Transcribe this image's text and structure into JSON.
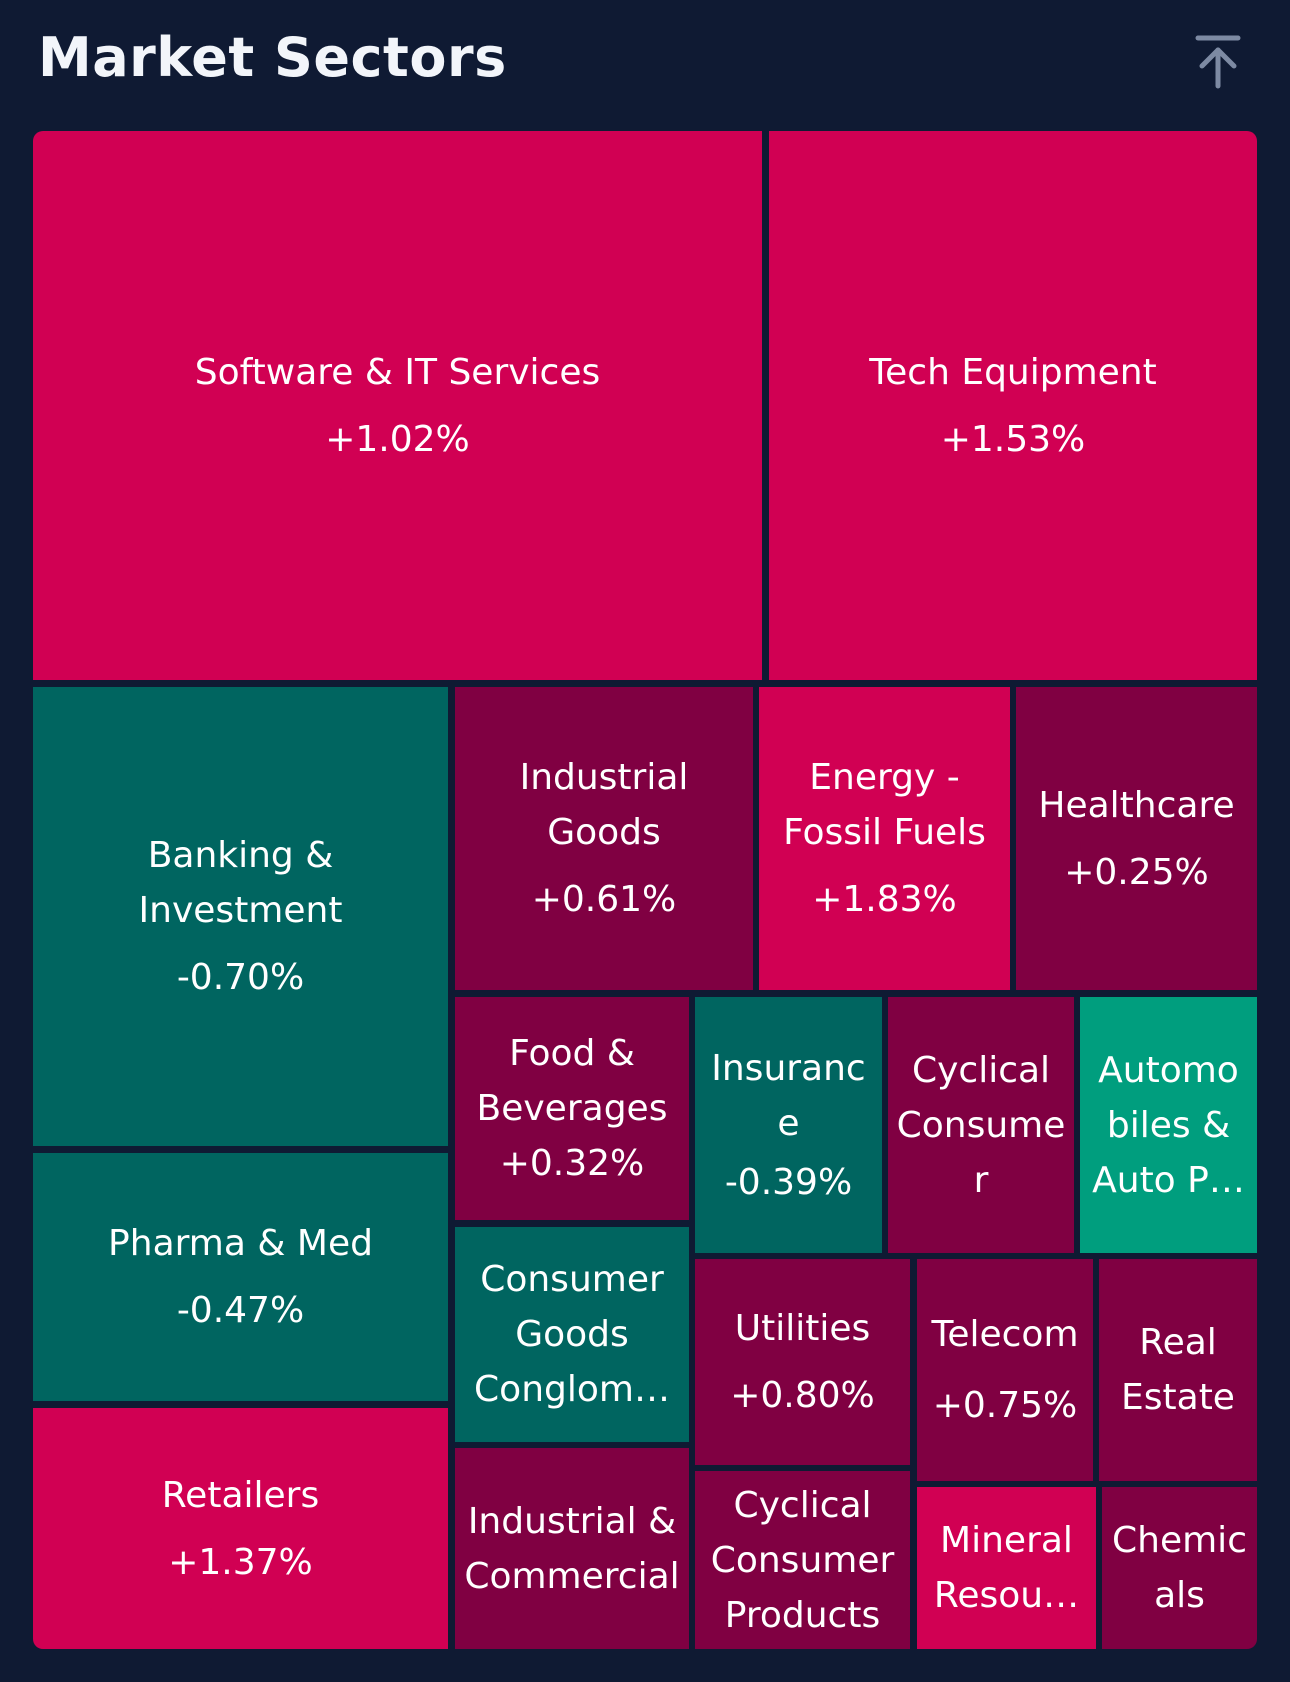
{
  "title": "Market Sectors",
  "colors": {
    "background": "#0f1a33",
    "strong_up": "#d10053",
    "mild_up": "#800042",
    "down": "#006560",
    "strong_down": "#009e7e"
  },
  "icons": {
    "collapse": "arrow-up-to-line-icon"
  },
  "sectors": [
    {
      "name": "Software & IT Services",
      "change": "+1.02%"
    },
    {
      "name": "Tech Equipment",
      "change": "+1.53%"
    },
    {
      "name": "Banking & Investment",
      "change": "-0.70%"
    },
    {
      "name": "Pharma & Med",
      "change": "-0.47%"
    },
    {
      "name": "Retailers",
      "change": "+1.37%"
    },
    {
      "name": "Industrial Goods",
      "change": "+0.61%"
    },
    {
      "name": "Energy - Fossil Fuels",
      "change": "+1.83%"
    },
    {
      "name": "Healthcare",
      "change": "+0.25%"
    },
    {
      "name": "Food & Beverages",
      "change": "+0.32%"
    },
    {
      "name": "Insurance",
      "change": "-0.39%"
    },
    {
      "name": "Cyclical Consumer",
      "change": ""
    },
    {
      "name": "Automobiles & Auto P…",
      "change": ""
    },
    {
      "name": "Consumer Goods Conglom…",
      "change": ""
    },
    {
      "name": "Utilities",
      "change": "+0.80%"
    },
    {
      "name": "Telecom",
      "change": "+0.75%"
    },
    {
      "name": "Real Estate",
      "change": ""
    },
    {
      "name": "Industrial & Commercial",
      "change": ""
    },
    {
      "name": "Cyclical Consumer Products",
      "change": ""
    },
    {
      "name": "Mineral Resou…",
      "change": ""
    },
    {
      "name": "Chemicals",
      "change": ""
    }
  ]
}
